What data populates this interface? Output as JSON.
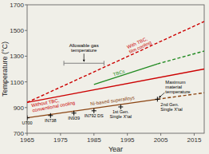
{
  "chart_data": {
    "type": "line",
    "xlabel": "Year",
    "ylabel": "Temperature (°C)",
    "xlim": [
      1965,
      2018
    ],
    "ylim": [
      700,
      1700
    ],
    "xticks": [
      1965,
      1975,
      1985,
      1995,
      2005,
      2015
    ],
    "yticks": [
      700,
      900,
      1100,
      1300,
      1500,
      1700
    ],
    "background_color": "#f0efe8",
    "series": [
      {
        "x": [
          1965,
          2018
        ],
        "values": [
          940,
          1200
        ],
        "color": "#cc0000",
        "line_style": "solid",
        "label": "Without TBC,\nconventional cooling"
      },
      {
        "x": [
          1965,
          2018
        ],
        "values": [
          940,
          1570
        ],
        "color": "#cc0000",
        "line_style": "dashed",
        "label": "With TBC,\nfilm cooling"
      },
      {
        "x": [
          1985,
          2004
        ],
        "values": [
          1080,
          1240
        ],
        "color": "#228B22",
        "line_style": "solid",
        "label": "TBCs"
      },
      {
        "x": [
          2004,
          2018
        ],
        "values": [
          1240,
          1340
        ],
        "color": "#228B22",
        "line_style": "dashed"
      },
      {
        "x": [
          1965,
          2004
        ],
        "values": [
          820,
          965
        ],
        "color": "#8B4513",
        "line_style": "solid",
        "label": "Ni-based superalloys"
      },
      {
        "x": [
          2004,
          2018
        ],
        "values": [
          965,
          1015
        ],
        "color": "#8B4513",
        "line_style": "dashed"
      },
      {
        "type": "scatter",
        "marker": "plus",
        "color": "#000000",
        "x": [
          1965,
          1972,
          1979,
          1985,
          1993,
          2004
        ],
        "values": [
          820,
          838,
          857,
          875,
          905,
          965
        ],
        "labels": [
          "U700",
          "IN738",
          "IN939",
          "IN792 DS",
          "1st Gen.\nSingle X'tal",
          "2nd Gen.\nSingle X'tal"
        ]
      }
    ],
    "annotations": [
      {
        "text": "Allowable gas\ntemperature",
        "x": [
          1976,
          1988
        ],
        "y": 1245
      },
      {
        "text": "Maximum\nmaterial\ntemperature",
        "x": 2004,
        "y": 966
      }
    ]
  }
}
